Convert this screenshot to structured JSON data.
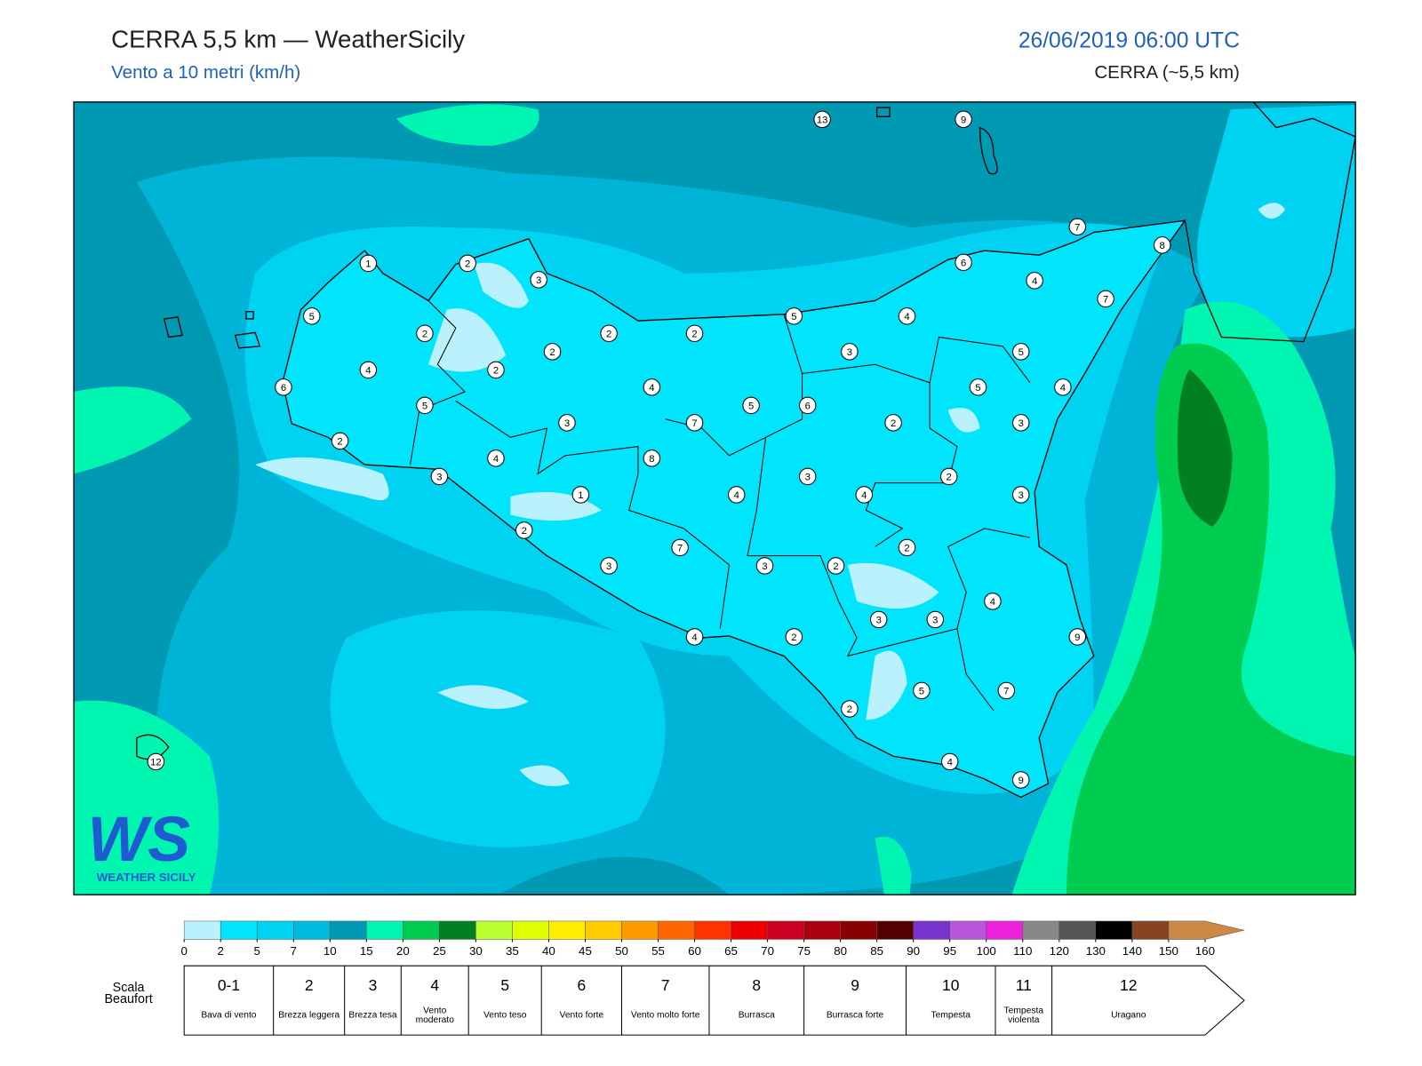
{
  "header": {
    "title": "CERRA 5,5 km — WeatherSicily",
    "subtitle": "Vento a 10 metri (km/h)",
    "datetime": "26/06/2019 06:00 UTC",
    "model": "CERRA (~5,5 km)"
  },
  "map": {
    "stations": [
      13,
      9,
      7,
      8,
      1,
      2,
      3,
      6,
      4,
      7,
      5,
      5,
      4,
      2,
      2,
      2,
      2,
      3,
      5,
      4,
      2,
      6,
      4,
      5,
      4,
      5,
      5,
      6,
      3,
      7,
      2,
      3,
      2,
      4,
      8,
      3,
      3,
      2,
      1,
      4,
      4,
      3,
      2,
      7,
      2,
      3,
      3,
      2,
      4,
      3,
      3,
      4,
      2,
      9,
      5,
      7,
      2,
      12,
      4,
      9
    ]
  },
  "logo": {
    "mark": "WS",
    "name": "WEATHER SICILY"
  },
  "colorbar": {
    "ticks": [
      0,
      2,
      5,
      7,
      10,
      15,
      20,
      25,
      30,
      35,
      40,
      45,
      50,
      55,
      60,
      65,
      70,
      75,
      80,
      85,
      90,
      95,
      100,
      110,
      120,
      130,
      140,
      150,
      160
    ],
    "colors": [
      "#b9f2fc",
      "#00e5fc",
      "#00d2f2",
      "#00bbe0",
      "#0099b4",
      "#00f5b0",
      "#00cc50",
      "#008020",
      "#b8ff30",
      "#e0ff00",
      "#ffee00",
      "#ffcc00",
      "#ff9900",
      "#ff6600",
      "#ff3300",
      "#ee0000",
      "#cc0022",
      "#aa0011",
      "#880000",
      "#550000",
      "#7733cc",
      "#bb55dd",
      "#ee22dd",
      "#888888",
      "#555555",
      "#000000",
      "#884422",
      "#cc8844"
    ]
  },
  "beaufort": {
    "label": "Scala Beaufort",
    "items": [
      {
        "force": "0-1",
        "desc": "Bava di vento"
      },
      {
        "force": "2",
        "desc": "Brezza leggera"
      },
      {
        "force": "3",
        "desc": "Brezza tesa"
      },
      {
        "force": "4",
        "desc": "Vento moderato"
      },
      {
        "force": "5",
        "desc": "Vento teso"
      },
      {
        "force": "6",
        "desc": "Vento forte"
      },
      {
        "force": "7",
        "desc": "Vento molto forte"
      },
      {
        "force": "8",
        "desc": "Burrasca"
      },
      {
        "force": "9",
        "desc": "Burrasca forte"
      },
      {
        "force": "10",
        "desc": "Tempesta"
      },
      {
        "force": "11",
        "desc": "Tempesta violenta"
      },
      {
        "force": "12",
        "desc": "Uragano"
      }
    ]
  }
}
